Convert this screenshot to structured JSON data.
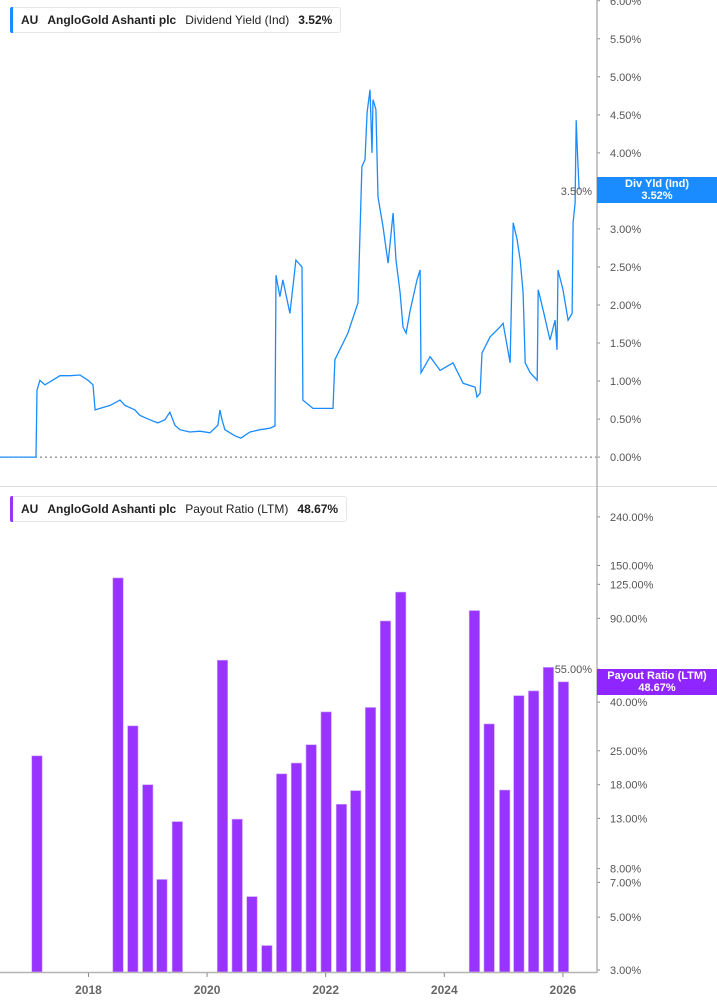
{
  "colors": {
    "yield_line": "#1a8cff",
    "payout_bar": "#9933ff",
    "axis": "#b3b3b3"
  },
  "top_legend": {
    "ticker": "AU",
    "company": "AngloGold Ashanti plc",
    "metric": "Dividend Yield (Ind)",
    "value": "3.52%"
  },
  "bottom_legend": {
    "ticker": "AU",
    "company": "AngloGold Ashanti plc",
    "metric": "Payout Ratio (LTM)",
    "value": "48.67%"
  },
  "top_tag": {
    "label": "Div Yld (Ind)",
    "value": "3.52%"
  },
  "bottom_tag": {
    "label": "Payout Ratio (LTM)",
    "value": "48.67%"
  },
  "chart_data": [
    {
      "type": "line",
      "series": [
        {
          "name": "Dividend Yield (Ind)",
          "points": [
            [
              "2016-07-05",
              0
            ],
            [
              "2017-02-12",
              0
            ],
            [
              "2017-02-18",
              0.88
            ],
            [
              "2017-03-08",
              1.01
            ],
            [
              "2017-04-08",
              0.95
            ],
            [
              "2017-05-09",
              0.99
            ],
            [
              "2017-07-10",
              1.07
            ],
            [
              "2017-09-09",
              1.07
            ],
            [
              "2017-11-09",
              1.08
            ],
            [
              "2017-12-29",
              1.01
            ],
            [
              "2018-01-29",
              0.95
            ],
            [
              "2018-02-11",
              0.62
            ],
            [
              "2018-03-13",
              0.64
            ],
            [
              "2018-05-14",
              0.68
            ],
            [
              "2018-07-14",
              0.75
            ],
            [
              "2018-08-14",
              0.68
            ],
            [
              "2018-10-14",
              0.62
            ],
            [
              "2018-11-13",
              0.55
            ],
            [
              "2019-01-14",
              0.49
            ],
            [
              "2019-03-04",
              0.45
            ],
            [
              "2019-04-16",
              0.49
            ],
            [
              "2019-05-17",
              0.59
            ],
            [
              "2019-06-17",
              0.42
            ],
            [
              "2019-07-18",
              0.36
            ],
            [
              "2019-09-17",
              0.33
            ],
            [
              "2019-11-18",
              0.34
            ],
            [
              "2020-01-19",
              0.32
            ],
            [
              "2020-03-08",
              0.42
            ],
            [
              "2020-03-20",
              0.62
            ],
            [
              "2020-04-02",
              0.49
            ],
            [
              "2020-04-20",
              0.36
            ],
            [
              "2020-06-21",
              0.28
            ],
            [
              "2020-07-28",
              0.25
            ],
            [
              "2020-09-22",
              0.33
            ],
            [
              "2020-11-23",
              0.36
            ],
            [
              "2021-01-23",
              0.38
            ],
            [
              "2021-02-23",
              0.41
            ],
            [
              "2021-03-01",
              2.39
            ],
            [
              "2021-03-25",
              2.11
            ],
            [
              "2021-04-13",
              2.33
            ],
            [
              "2021-05-26",
              1.89
            ],
            [
              "2021-07-02",
              2.59
            ],
            [
              "2021-08-08",
              2.5
            ],
            [
              "2021-08-14",
              0.75
            ],
            [
              "2021-10-15",
              0.64
            ],
            [
              "2022-02-15",
              0.64
            ],
            [
              "2022-02-27",
              1.28
            ],
            [
              "2022-05-18",
              1.63
            ],
            [
              "2022-07-19",
              2.03
            ],
            [
              "2022-08-12",
              3.82
            ],
            [
              "2022-08-31",
              3.91
            ],
            [
              "2022-09-13",
              4.53
            ],
            [
              "2022-10-01",
              4.83
            ],
            [
              "2022-10-13",
              4.0
            ],
            [
              "2022-10-19",
              4.7
            ],
            [
              "2022-11-06",
              4.57
            ],
            [
              "2022-11-19",
              3.42
            ],
            [
              "2022-12-20",
              3.03
            ],
            [
              "2023-01-20",
              2.55
            ],
            [
              "2023-02-20",
              3.21
            ],
            [
              "2023-03-10",
              2.59
            ],
            [
              "2023-04-04",
              2.16
            ],
            [
              "2023-04-22",
              1.71
            ],
            [
              "2023-05-11",
              1.63
            ],
            [
              "2023-06-05",
              1.93
            ],
            [
              "2023-07-17",
              2.33
            ],
            [
              "2023-08-05",
              2.46
            ],
            [
              "2023-08-11",
              1.11
            ],
            [
              "2023-10-06",
              1.32
            ],
            [
              "2023-12-06",
              1.14
            ],
            [
              "2024-02-24",
              1.24
            ],
            [
              "2024-04-26",
              0.97
            ],
            [
              "2024-07-09",
              0.92
            ],
            [
              "2024-07-21",
              0.79
            ],
            [
              "2024-08-09",
              0.84
            ],
            [
              "2024-08-21",
              1.37
            ],
            [
              "2024-10-10",
              1.58
            ],
            [
              "2024-12-10",
              1.71
            ],
            [
              "2024-12-29",
              1.76
            ],
            [
              "2025-02-10",
              1.24
            ],
            [
              "2025-03-01",
              3.08
            ],
            [
              "2025-03-25",
              2.86
            ],
            [
              "2025-04-13",
              2.59
            ],
            [
              "2025-05-01",
              2.16
            ],
            [
              "2025-05-14",
              1.24
            ],
            [
              "2025-06-14",
              1.11
            ],
            [
              "2025-07-27",
              1.01
            ],
            [
              "2025-08-02",
              2.2
            ],
            [
              "2025-09-02",
              1.93
            ],
            [
              "2025-10-14",
              1.54
            ],
            [
              "2025-11-14",
              1.8
            ],
            [
              "2025-11-26",
              1.41
            ],
            [
              "2025-12-02",
              2.46
            ],
            [
              "2026-01-02",
              2.2
            ],
            [
              "2026-02-02",
              1.8
            ],
            [
              "2026-02-27",
              1.89
            ],
            [
              "2026-03-05",
              3.08
            ],
            [
              "2026-03-17",
              3.34
            ],
            [
              "2026-03-24",
              4.43
            ],
            [
              "2026-03-30",
              4.08
            ],
            [
              "2026-04-11",
              3.52
            ]
          ]
        }
      ],
      "xlim": [
        "2016-07-05",
        "2026-07-30"
      ],
      "ylim": [
        -0.38,
        6.01
      ],
      "yscale": "linear",
      "yticks": [
        "0.00%",
        "0.50%",
        "1.00%",
        "1.50%",
        "2.00%",
        "2.50%",
        "3.00%",
        "3.50%",
        "4.00%",
        "4.50%",
        "5.00%",
        "5.50%",
        "6.00%"
      ],
      "ytick_values": [
        0,
        0.5,
        1,
        1.5,
        2,
        2.5,
        3,
        3.5,
        4,
        4.5,
        5,
        5.5,
        6
      ],
      "reference_line": 0,
      "grid": false
    },
    {
      "type": "bar",
      "series": [
        {
          "name": "Payout Ratio (LTM)",
          "points": [
            [
              "2017-02-18",
              23.8
            ],
            [
              "2018-07-02",
              133
            ],
            [
              "2018-10-01",
              31.8
            ],
            [
              "2019-01-01",
              18
            ],
            [
              "2019-03-29",
              7.2
            ],
            [
              "2019-07-02",
              12.6
            ],
            [
              "2020-04-05",
              60
            ],
            [
              "2020-07-05",
              12.9
            ],
            [
              "2020-10-04",
              6.1
            ],
            [
              "2021-01-04",
              3.8
            ],
            [
              "2021-04-05",
              20
            ],
            [
              "2021-07-05",
              22.2
            ],
            [
              "2021-10-04",
              26.5
            ],
            [
              "2022-01-04",
              36.4
            ],
            [
              "2022-04-08",
              14.9
            ],
            [
              "2022-07-05",
              17
            ],
            [
              "2022-10-04",
              38
            ],
            [
              "2023-01-04",
              87.7
            ],
            [
              "2023-04-08",
              116
            ],
            [
              "2024-07-05",
              97
            ],
            [
              "2024-10-04",
              32.4
            ],
            [
              "2025-01-08",
              17.1
            ],
            [
              "2025-04-05",
              42.6
            ],
            [
              "2025-07-05",
              44.6
            ],
            [
              "2025-10-04",
              56
            ],
            [
              "2026-01-04",
              48.67
            ]
          ]
        }
      ],
      "xlim": [
        "2016-07-05",
        "2026-07-30"
      ],
      "ylim": [
        2.95,
        310
      ],
      "yscale": "log",
      "yticks": [
        "3.00%",
        "5.00%",
        "7.00%",
        "8.00%",
        "13.00%",
        "18.00%",
        "25.00%",
        "40.00%",
        "55.00%",
        "90.00%",
        "125.00%",
        "150.00%",
        "240.00%"
      ],
      "ytick_values": [
        3,
        5,
        7,
        8,
        13,
        18,
        25,
        40,
        55,
        90,
        125,
        150,
        240
      ],
      "xticks": [
        "2018",
        "2020",
        "2022",
        "2024",
        "2026"
      ],
      "grid": false
    }
  ]
}
